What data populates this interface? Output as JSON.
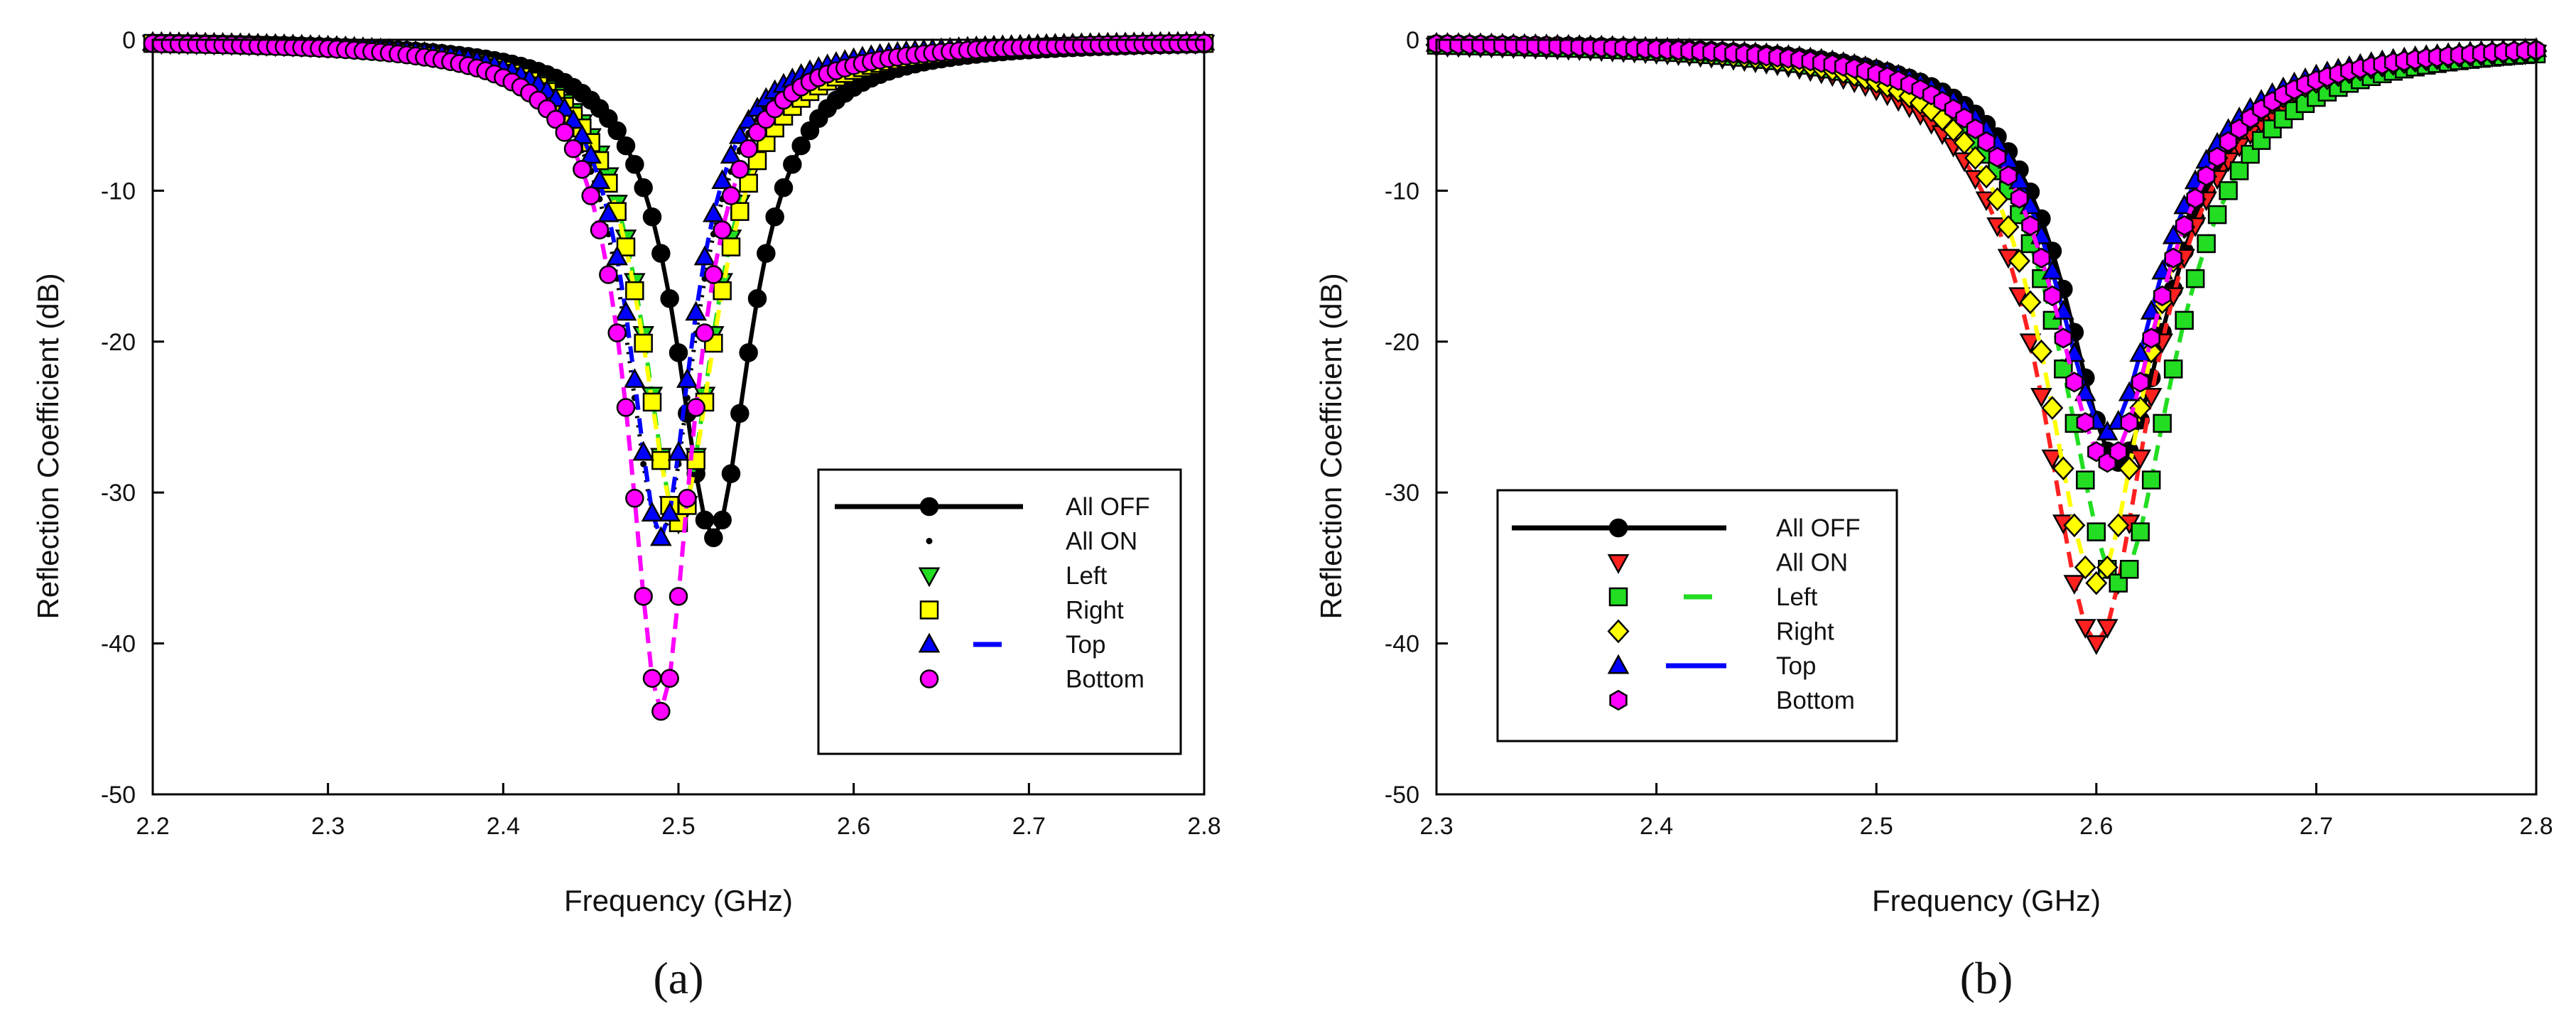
{
  "chart_data": [
    {
      "type": "line",
      "panel": "a",
      "panel_label": "(a)",
      "xlabel": "Frequency (GHz)",
      "ylabel": "Reflection Coefficient (dB)",
      "xlim": [
        2.2,
        2.8
      ],
      "ylim": [
        -50,
        0
      ],
      "xticks": [
        "2.2",
        "2.3",
        "2.4",
        "2.5",
        "2.6",
        "2.7",
        "2.8"
      ],
      "yticks": [
        "0",
        "-10",
        "-20",
        "-30",
        "-40",
        "-50"
      ],
      "grid": false,
      "legend_position": "lower-right",
      "series": [
        {
          "name": "All OFF",
          "line": "solid",
          "line_color": "#000000",
          "marker": "circle",
          "marker_color": "#000000",
          "f0": 2.52,
          "min_db": -33,
          "width": 0.026
        },
        {
          "name": "All ON",
          "line": "dot",
          "line_color": "#000000",
          "marker": "dot",
          "marker_color": "#000000",
          "f0": 2.49,
          "min_db": -33,
          "width": 0.024
        },
        {
          "name": "Left",
          "line": "dash",
          "line_color": "#22dd22",
          "marker": "triangle-down",
          "marker_color": "#22dd22",
          "f0": 2.5,
          "min_db": -32,
          "width": 0.025
        },
        {
          "name": "Right",
          "line": "dash",
          "line_color": "#ffff00",
          "marker": "square",
          "marker_color": "#ffff00",
          "f0": 2.5,
          "min_db": -32,
          "width": 0.026
        },
        {
          "name": "Top",
          "line": "dash",
          "line_color": "#0000ff",
          "marker": "triangle-up",
          "marker_color": "#0000ff",
          "f0": 2.49,
          "min_db": -33,
          "width": 0.022
        },
        {
          "name": "Bottom",
          "line": "dash",
          "line_color": "#ff00ff",
          "marker": "circle",
          "marker_color": "#ff00ff",
          "f0": 2.49,
          "min_db": -44.5,
          "width": 0.022
        }
      ],
      "legend": [
        {
          "label": "All OFF",
          "line": "solid",
          "line_color": "#000000",
          "marker": "circle",
          "marker_color": "#000000"
        },
        {
          "label": "All ON",
          "line": "none",
          "line_color": "#000000",
          "marker": "dot",
          "marker_color": "#000000"
        },
        {
          "label": "Left",
          "line": "none",
          "line_color": "#22dd22",
          "marker": "triangle-down",
          "marker_color": "#22dd22"
        },
        {
          "label": "Right",
          "line": "none",
          "line_color": "#ffff00",
          "marker": "square",
          "marker_color": "#ffff00"
        },
        {
          "label": "Top",
          "line": "dash",
          "line_color": "#0000ff",
          "marker": "triangle-up",
          "marker_color": "#0000ff"
        },
        {
          "label": "Bottom",
          "line": "none",
          "line_color": "#ff00ff",
          "marker": "circle",
          "marker_color": "#ff00ff"
        }
      ]
    },
    {
      "type": "line",
      "panel": "b",
      "panel_label": "(b)",
      "xlabel": "Frequency (GHz)",
      "ylabel": "Reflection Coefficient (dB)",
      "xlim": [
        2.3,
        2.8
      ],
      "ylim": [
        -50,
        0
      ],
      "xticks": [
        "2.3",
        "2.4",
        "2.5",
        "2.6",
        "2.7",
        "2.8"
      ],
      "yticks": [
        "0",
        "-10",
        "-20",
        "-30",
        "-40",
        "-50"
      ],
      "grid": false,
      "legend_position": "lower-left",
      "series": [
        {
          "name": "All OFF",
          "line": "solid",
          "line_color": "#000000",
          "marker": "circle",
          "marker_color": "#000000",
          "f0": 2.61,
          "min_db": -28,
          "width": 0.03
        },
        {
          "name": "All ON",
          "line": "dash",
          "line_color": "#ff2020",
          "marker": "triangle-down",
          "marker_color": "#ff2020",
          "f0": 2.6,
          "min_db": -40,
          "width": 0.03
        },
        {
          "name": "Left",
          "line": "dash",
          "line_color": "#22dd22",
          "marker": "square",
          "marker_color": "#22dd22",
          "f0": 2.61,
          "min_db": -36,
          "width": 0.031
        },
        {
          "name": "Right",
          "line": "dash",
          "line_color": "#ffff00",
          "marker": "diamond",
          "marker_color": "#ffff00",
          "f0": 2.6,
          "min_db": -36,
          "width": 0.029
        },
        {
          "name": "Top",
          "line": "solid",
          "line_color": "#0000ff",
          "marker": "triangle-up",
          "marker_color": "#0000ff",
          "f0": 2.605,
          "min_db": -26,
          "width": 0.03
        },
        {
          "name": "Bottom",
          "line": "dash",
          "line_color": "#ff00ff",
          "marker": "hexagon",
          "marker_color": "#ff00ff",
          "f0": 2.605,
          "min_db": -28,
          "width": 0.031
        }
      ],
      "legend": [
        {
          "label": "All OFF",
          "line": "solid",
          "line_color": "#000000",
          "marker": "circle",
          "marker_color": "#000000"
        },
        {
          "label": "All ON",
          "line": "none",
          "line_color": "#ff2020",
          "marker": "triangle-down",
          "marker_color": "#ff2020"
        },
        {
          "label": "Left",
          "line": "dash",
          "line_color": "#22dd22",
          "marker": "square",
          "marker_color": "#22dd22"
        },
        {
          "label": "Right",
          "line": "none",
          "line_color": "#ffff00",
          "marker": "diamond",
          "marker_color": "#ffff00"
        },
        {
          "label": "Top",
          "line": "solid",
          "line_color": "#0000ff",
          "marker": "triangle-up",
          "marker_color": "#0000ff"
        },
        {
          "label": "Bottom",
          "line": "none",
          "line_color": "#ff00ff",
          "marker": "hexagon",
          "marker_color": "#ff00ff"
        }
      ]
    }
  ]
}
